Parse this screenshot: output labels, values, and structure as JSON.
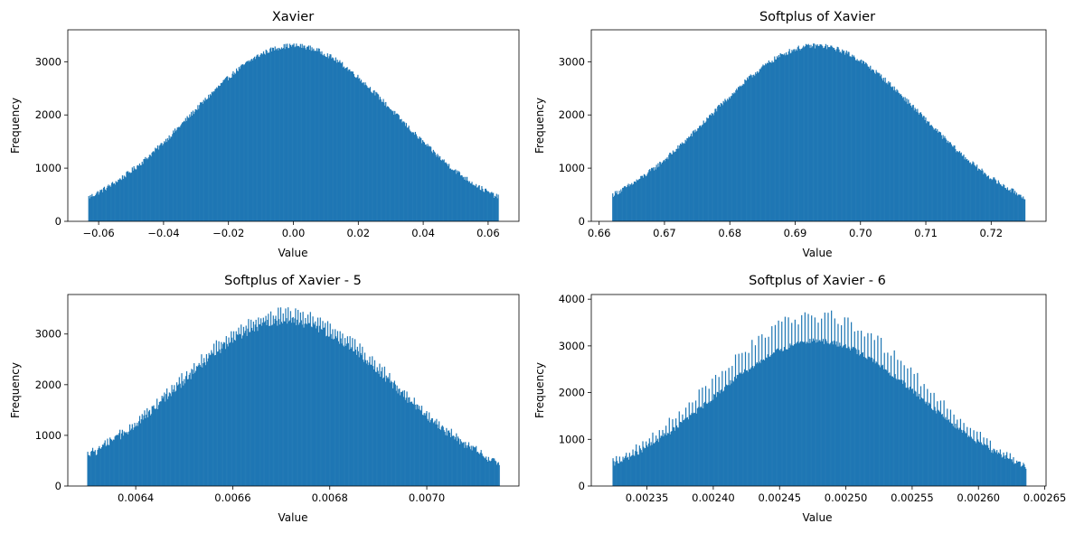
{
  "chart_data": [
    {
      "type": "bar",
      "title": "Xavier",
      "xlabel": "Value",
      "ylabel": "Frequency",
      "color": "#1f77b4",
      "xlim": [
        -0.0695,
        0.0695
      ],
      "ylim": [
        0,
        3600
      ],
      "x_ticks": [
        -0.06,
        -0.04,
        -0.02,
        0.0,
        0.02,
        0.04,
        0.06
      ],
      "x_tick_labels": [
        "−0.06",
        "−0.04",
        "−0.02",
        "0.00",
        "0.02",
        "0.04",
        "0.06"
      ],
      "y_ticks": [
        0,
        1000,
        2000,
        3000
      ],
      "y_tick_labels": [
        "0",
        "1000",
        "2000",
        "3000"
      ],
      "bins": {
        "start": -0.0632,
        "end": 0.0632,
        "count": 500
      },
      "shape": {
        "center": 0.0,
        "peak": 3300,
        "edge": 450,
        "noise": 50
      }
    },
    {
      "type": "bar",
      "title": "Softplus of Xavier",
      "xlabel": "Value",
      "ylabel": "Frequency",
      "color": "#1f77b4",
      "xlim": [
        0.6588,
        0.7284
      ],
      "ylim": [
        0,
        3600
      ],
      "x_ticks": [
        0.66,
        0.67,
        0.68,
        0.69,
        0.7,
        0.71,
        0.72
      ],
      "x_tick_labels": [
        "0.66",
        "0.67",
        "0.68",
        "0.69",
        "0.70",
        "0.71",
        "0.72"
      ],
      "y_ticks": [
        0,
        1000,
        2000,
        3000
      ],
      "y_tick_labels": [
        "0",
        "1000",
        "2000",
        "3000"
      ],
      "bins": {
        "start": 0.662,
        "end": 0.7252,
        "count": 500
      },
      "shape": {
        "center": 0.6932,
        "peak": 3300,
        "edge": 450,
        "noise": 50
      }
    },
    {
      "type": "bar",
      "title": "Softplus of Xavier - 5",
      "xlabel": "Value",
      "ylabel": "Frequency",
      "color": "#1f77b4",
      "xlim": [
        0.00626,
        0.00719
      ],
      "ylim": [
        0,
        3780
      ],
      "x_ticks": [
        0.0064,
        0.0066,
        0.0068,
        0.007
      ],
      "x_tick_labels": [
        "0.0064",
        "0.0066",
        "0.0068",
        "0.0070"
      ],
      "y_ticks": [
        0,
        1000,
        2000,
        3000
      ],
      "y_tick_labels": [
        "0",
        "1000",
        "2000",
        "3000"
      ],
      "bins": {
        "start": 0.0063,
        "end": 0.00715,
        "count": 500
      },
      "shape": {
        "center": 0.00671,
        "peak": 3250,
        "edge": 450,
        "noise": 80,
        "spike_every": 3,
        "spike_size": 250
      }
    },
    {
      "type": "bar",
      "title": "Softplus of Xavier - 6",
      "xlabel": "Value",
      "ylabel": "Frequency",
      "color": "#1f77b4",
      "xlim": [
        0.002308,
        0.002651
      ],
      "ylim": [
        0,
        4100
      ],
      "x_ticks": [
        0.00235,
        0.0024,
        0.00245,
        0.0025,
        0.00255,
        0.0026,
        0.00265
      ],
      "x_tick_labels": [
        "0.00235",
        "0.00240",
        "0.00245",
        "0.00250",
        "0.00255",
        "0.00260",
        "0.00265"
      ],
      "y_ticks": [
        0,
        1000,
        2000,
        3000,
        4000
      ],
      "y_tick_labels": [
        "0",
        "1000",
        "2000",
        "3000",
        "4000"
      ],
      "bins": {
        "start": 0.002324,
        "end": 0.002636,
        "count": 500
      },
      "shape": {
        "center": 0.002478,
        "peak": 3100,
        "edge": 420,
        "noise": 60,
        "spike_every": 4,
        "spike_size": 700
      }
    }
  ]
}
